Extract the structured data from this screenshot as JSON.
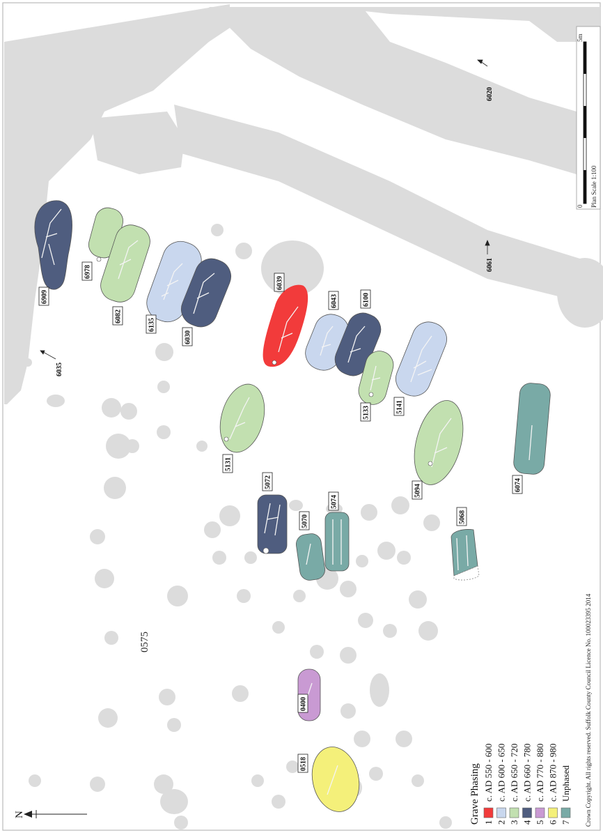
{
  "site_label": "0575",
  "north_label": "N",
  "context_labels": [
    "6035",
    "6061",
    "6020"
  ],
  "graves": [
    {
      "id": "6909",
      "phase": 4
    },
    {
      "id": "6978",
      "phase": 3
    },
    {
      "id": "6082",
      "phase": 3
    },
    {
      "id": "6135",
      "phase": 2
    },
    {
      "id": "6030",
      "phase": 4
    },
    {
      "id": "6039",
      "phase": 1
    },
    {
      "id": "6043",
      "phase": 2
    },
    {
      "id": "6100",
      "phase": 4
    },
    {
      "id": "5133",
      "phase": 3
    },
    {
      "id": "5141",
      "phase": 2
    },
    {
      "id": "5131",
      "phase": 3
    },
    {
      "id": "5094",
      "phase": 3
    },
    {
      "id": "6074",
      "phase": 7
    },
    {
      "id": "5072",
      "phase": 4
    },
    {
      "id": "5070",
      "phase": 7
    },
    {
      "id": "5074",
      "phase": 7
    },
    {
      "id": "5068",
      "phase": 7
    },
    {
      "id": "0400",
      "phase": 5
    },
    {
      "id": "0518",
      "phase": 6
    }
  ],
  "legend": {
    "title": "Grave Phasing",
    "items": [
      {
        "num": "1",
        "label": "c. AD 550 - 600",
        "color": "#f23b3b"
      },
      {
        "num": "2",
        "label": "c. AD 600 - 650",
        "color": "#c9d7ee"
      },
      {
        "num": "3",
        "label": "c. AD 650 - 720",
        "color": "#c2e0b0"
      },
      {
        "num": "4",
        "label": "c. AD 660 - 780",
        "color": "#4f5d7f"
      },
      {
        "num": "5",
        "label": "c. AD 770 - 880",
        "color": "#c99ad3"
      },
      {
        "num": "6",
        "label": "c. AD 870 - 980",
        "color": "#f4f07a"
      },
      {
        "num": "7",
        "label": "Unphased",
        "color": "#79aaa6"
      }
    ]
  },
  "scale_bar": {
    "start_label": "0",
    "end_label": "5m",
    "caption": "Plan Scale 1:100"
  },
  "copyright": "Crown Copyright. All rights reserved. Suffolk County Council Licence No. 100023395 2014",
  "feature_color": "#dcdcdc"
}
